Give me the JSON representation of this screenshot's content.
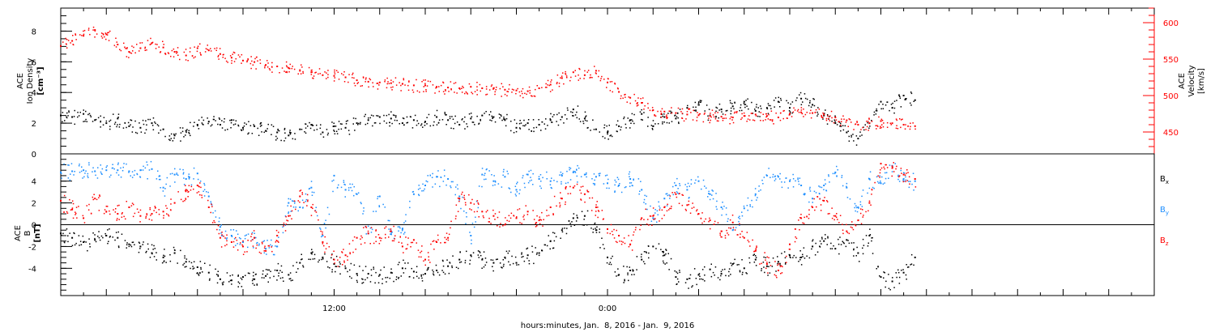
{
  "chart_data": [
    {
      "type": "scatter",
      "panel": "top",
      "ylabel_lines": [
        "ACE",
        "Ion Density",
        "[cm⁻³]"
      ],
      "y2label_lines": [
        "ACE",
        "Velocity",
        "[km/s]"
      ],
      "ylim": [
        0,
        9.5
      ],
      "y_ticks": [
        0,
        2,
        4,
        6,
        8
      ],
      "y2lim": [
        420,
        620
      ],
      "y2_ticks": [
        450,
        500,
        550,
        600
      ],
      "x_range_hours": [
        0,
        48
      ],
      "series": [
        {
          "name": "Ion Density",
          "axis": "left",
          "color": "#000000",
          "x": [
            0.0,
            0.5,
            1.0,
            1.5,
            2.0,
            2.5,
            3.0,
            3.5,
            4.0,
            4.5,
            5.0,
            5.5,
            6.0,
            6.5,
            7.0,
            7.5,
            8.0,
            8.5,
            9.0,
            9.5,
            10.0,
            10.5,
            11.0,
            11.5,
            12.0,
            12.5,
            13.0,
            13.5,
            14.0,
            14.5,
            15.0,
            15.5,
            16.0,
            16.5,
            17.0,
            17.5,
            18.0,
            18.5,
            19.0,
            19.5,
            20.0,
            20.5,
            21.0,
            21.5,
            22.0,
            22.5,
            23.0,
            23.5,
            24.0,
            24.5,
            25.0,
            25.5,
            26.0,
            26.5,
            27.0,
            27.5,
            28.0,
            28.5,
            29.0,
            29.5,
            30.0,
            30.5,
            31.0,
            31.5,
            32.0,
            32.5,
            33.0,
            33.5,
            34.0,
            34.5,
            35.0,
            35.5,
            36.0,
            36.5,
            37.0,
            37.5
          ],
          "y": [
            2.5,
            2.4,
            2.6,
            2.2,
            2.0,
            2.3,
            1.8,
            1.7,
            2.0,
            1.6,
            1.2,
            1.5,
            1.9,
            2.1,
            1.9,
            2.2,
            1.7,
            1.8,
            1.5,
            1.4,
            1.2,
            1.6,
            1.9,
            1.4,
            1.8,
            1.7,
            2.0,
            2.2,
            2.4,
            2.3,
            2.0,
            2.2,
            2.1,
            2.4,
            2.2,
            1.9,
            2.3,
            2.5,
            2.4,
            2.2,
            1.7,
            2.0,
            1.9,
            2.2,
            2.4,
            2.9,
            2.3,
            1.6,
            1.4,
            1.8,
            2.2,
            2.6,
            1.8,
            2.4,
            2.3,
            3.0,
            3.2,
            2.5,
            2.9,
            3.1,
            3.4,
            2.8,
            3.0,
            3.4,
            3.0,
            3.6,
            3.2,
            2.5,
            2.0,
            1.4,
            1.0,
            2.0,
            3.4,
            3.0,
            3.8,
            3.5
          ]
        },
        {
          "name": "Velocity",
          "axis": "right",
          "color": "#ff0000",
          "x": [
            0.0,
            0.5,
            1.0,
            1.5,
            2.0,
            2.5,
            3.0,
            3.5,
            4.0,
            4.5,
            5.0,
            5.5,
            6.0,
            6.5,
            7.0,
            7.5,
            8.0,
            8.5,
            9.0,
            9.5,
            10.0,
            10.5,
            11.0,
            11.5,
            12.0,
            12.5,
            13.0,
            13.5,
            14.0,
            14.5,
            15.0,
            15.5,
            16.0,
            16.5,
            17.0,
            17.5,
            18.0,
            18.5,
            19.0,
            19.5,
            20.0,
            20.5,
            21.0,
            21.5,
            22.0,
            22.5,
            23.0,
            23.5,
            24.0,
            24.5,
            25.0,
            25.5,
            26.0,
            26.5,
            27.0,
            27.5,
            28.0,
            28.5,
            29.0,
            29.5,
            30.0,
            30.5,
            31.0,
            31.5,
            32.0,
            32.5,
            33.0,
            33.5,
            34.0,
            34.5,
            35.0,
            35.5,
            36.0,
            36.5,
            37.0,
            37.5
          ],
          "y": [
            568,
            575,
            582,
            590,
            584,
            570,
            560,
            565,
            572,
            566,
            560,
            555,
            565,
            562,
            557,
            552,
            548,
            546,
            542,
            540,
            538,
            534,
            532,
            528,
            527,
            525,
            521,
            519,
            518,
            517,
            516,
            514,
            514,
            512,
            511,
            510,
            512,
            510,
            510,
            508,
            507,
            506,
            510,
            515,
            524,
            532,
            528,
            534,
            518,
            505,
            497,
            490,
            480,
            478,
            476,
            474,
            473,
            472,
            471,
            470,
            472,
            474,
            472,
            470,
            475,
            477,
            476,
            474,
            470,
            466,
            460,
            462,
            465,
            462,
            460,
            458
          ]
        }
      ]
    },
    {
      "type": "scatter",
      "panel": "bottom",
      "ylabel_lines": [
        "ACE",
        "B",
        "[nT]"
      ],
      "ylim": [
        -6.5,
        6.5
      ],
      "y_ticks": [
        -4,
        -2,
        0,
        2,
        4
      ],
      "zero_line": true,
      "x_range_hours": [
        0,
        48
      ],
      "series": [
        {
          "name": "Bx",
          "color": "#000000",
          "x": [
            0.0,
            0.5,
            1.0,
            1.5,
            2.0,
            2.5,
            3.0,
            3.5,
            4.0,
            4.5,
            5.0,
            5.5,
            6.0,
            6.5,
            7.0,
            7.5,
            8.0,
            8.5,
            9.0,
            9.5,
            10.0,
            10.5,
            11.0,
            11.5,
            12.0,
            12.5,
            13.0,
            13.5,
            14.0,
            14.5,
            15.0,
            15.5,
            16.0,
            16.5,
            17.0,
            17.5,
            18.0,
            18.5,
            19.0,
            19.5,
            20.0,
            20.5,
            21.0,
            21.5,
            22.0,
            22.5,
            23.0,
            23.5,
            24.0,
            24.5,
            25.0,
            25.5,
            26.0,
            26.5,
            27.0,
            27.5,
            28.0,
            28.5,
            29.0,
            29.5,
            30.0,
            30.5,
            31.0,
            31.5,
            32.0,
            32.5,
            33.0,
            33.5,
            34.0,
            34.5,
            35.0,
            35.5,
            36.0,
            36.5,
            37.0,
            37.5
          ],
          "y": [
            -0.8,
            -1.2,
            -1.6,
            -1.4,
            -1.0,
            -1.2,
            -1.8,
            -2.0,
            -2.6,
            -3.0,
            -2.6,
            -3.4,
            -3.9,
            -4.4,
            -5.0,
            -5.1,
            -4.8,
            -5.0,
            -4.7,
            -4.2,
            -4.6,
            -3.5,
            -2.6,
            -3.0,
            -3.6,
            -4.0,
            -4.5,
            -4.5,
            -4.6,
            -4.4,
            -4.0,
            -4.3,
            -4.5,
            -4.2,
            -3.8,
            -3.2,
            -2.8,
            -3.2,
            -3.5,
            -3.0,
            -3.5,
            -2.8,
            -2.6,
            -1.5,
            -0.5,
            0.6,
            0.8,
            -0.5,
            -3.0,
            -4.6,
            -4.2,
            -3.2,
            -2.0,
            -2.8,
            -4.8,
            -5.0,
            -4.6,
            -4.1,
            -4.5,
            -3.6,
            -4.0,
            -3.2,
            -3.8,
            -3.4,
            -2.8,
            -3.0,
            -2.0,
            -1.5,
            -2.2,
            -1.4,
            -2.6,
            -1.0,
            -4.8,
            -5.2,
            -4.4,
            -3.0
          ]
        },
        {
          "name": "By",
          "color": "#1e8fff",
          "x": [
            0.0,
            0.5,
            1.0,
            1.5,
            2.0,
            2.5,
            3.0,
            3.5,
            4.0,
            4.5,
            5.0,
            5.5,
            6.0,
            6.5,
            7.0,
            7.5,
            8.0,
            8.5,
            9.0,
            9.5,
            10.0,
            10.5,
            11.0,
            11.5,
            12.0,
            12.5,
            13.0,
            13.5,
            14.0,
            14.5,
            15.0,
            15.5,
            16.0,
            16.5,
            17.0,
            17.5,
            18.0,
            18.5,
            19.0,
            19.5,
            20.0,
            20.5,
            21.0,
            21.5,
            22.0,
            22.5,
            23.0,
            23.5,
            24.0,
            24.5,
            25.0,
            25.5,
            26.0,
            26.5,
            27.0,
            27.5,
            28.0,
            28.5,
            29.0,
            29.5,
            30.0,
            30.5,
            31.0,
            31.5,
            32.0,
            32.5,
            33.0,
            33.5,
            34.0,
            34.5,
            35.0,
            35.5,
            36.0,
            36.5,
            37.0,
            37.5
          ],
          "y": [
            4.8,
            4.9,
            5.0,
            4.9,
            5.0,
            5.0,
            4.9,
            5.0,
            5.1,
            3.4,
            4.6,
            4.2,
            4.7,
            2.6,
            -0.2,
            -1.0,
            -1.6,
            -1.2,
            -2.2,
            -2.0,
            2.0,
            1.6,
            3.4,
            -1.0,
            4.5,
            3.2,
            2.8,
            -0.8,
            2.6,
            -0.6,
            -0.4,
            2.8,
            3.6,
            4.4,
            4.2,
            2.6,
            -1.0,
            4.6,
            4.0,
            4.4,
            3.2,
            4.6,
            4.2,
            4.0,
            4.5,
            4.8,
            4.6,
            4.4,
            3.8,
            3.6,
            4.2,
            3.2,
            0.6,
            2.4,
            3.6,
            3.2,
            4.0,
            2.8,
            1.6,
            -0.5,
            1.5,
            2.8,
            4.5,
            4.4,
            4.0,
            3.6,
            2.4,
            3.6,
            4.8,
            3.4,
            1.6,
            4.2,
            3.8,
            5.4,
            4.2,
            4.0
          ]
        },
        {
          "name": "Bz",
          "color": "#ff0000",
          "x": [
            0.0,
            0.5,
            1.0,
            1.5,
            2.0,
            2.5,
            3.0,
            3.5,
            4.0,
            4.5,
            5.0,
            5.5,
            6.0,
            6.5,
            7.0,
            7.5,
            8.0,
            8.5,
            9.0,
            9.5,
            10.0,
            10.5,
            11.0,
            11.5,
            12.0,
            12.5,
            13.0,
            13.5,
            14.0,
            14.5,
            15.0,
            15.5,
            16.0,
            16.5,
            17.0,
            17.5,
            18.0,
            18.5,
            19.0,
            19.5,
            20.0,
            20.5,
            21.0,
            21.5,
            22.0,
            22.5,
            23.0,
            23.5,
            24.0,
            24.5,
            25.0,
            25.5,
            26.0,
            26.5,
            27.0,
            27.5,
            28.0,
            28.5,
            29.0,
            29.5,
            30.0,
            30.5,
            31.0,
            31.5,
            32.0,
            32.5,
            33.0,
            33.5,
            34.0,
            34.5,
            35.0,
            35.5,
            36.0,
            36.5,
            37.0,
            37.5
          ],
          "y": [
            2.2,
            1.4,
            0.6,
            2.4,
            1.2,
            1.0,
            1.6,
            0.8,
            1.0,
            1.2,
            2.0,
            3.2,
            3.6,
            1.6,
            -1.2,
            -1.6,
            -2.0,
            -1.2,
            -2.4,
            -1.0,
            0.8,
            2.6,
            1.6,
            -1.6,
            -3.2,
            -2.8,
            -1.2,
            -0.8,
            -1.2,
            -0.6,
            -2.0,
            -1.4,
            -3.2,
            -1.6,
            -1.2,
            2.4,
            2.0,
            1.2,
            0.8,
            0.0,
            0.6,
            1.2,
            0.4,
            1.6,
            2.4,
            3.4,
            2.8,
            1.6,
            -0.4,
            -1.0,
            -1.8,
            0.6,
            0.8,
            1.6,
            2.8,
            1.8,
            1.0,
            0.4,
            -0.6,
            0.2,
            -1.2,
            -2.4,
            -3.6,
            -4.2,
            -1.8,
            0.6,
            1.6,
            2.2,
            0.8,
            -0.6,
            0.4,
            2.0,
            5.6,
            5.2,
            4.6,
            4.2
          ]
        }
      ]
    }
  ],
  "legend": [
    {
      "label": "B",
      "sub": "x",
      "color": "#000000"
    },
    {
      "label": "B",
      "sub": "y",
      "color": "#1e8fff"
    },
    {
      "label": "B",
      "sub": "z",
      "color": "#ff0000"
    }
  ],
  "x_axis": {
    "tick_labels": [
      {
        "hour": 12,
        "label": "12:00"
      },
      {
        "hour": 24,
        "label": "0:00"
      }
    ],
    "xlabel": "hours:minutes, Jan.  8, 2016 - Jan.  9, 2016"
  },
  "colors": {
    "axis": "#000000",
    "velocity_axis": "#ff0000",
    "by": "#1e8fff",
    "bz": "#ff0000"
  }
}
